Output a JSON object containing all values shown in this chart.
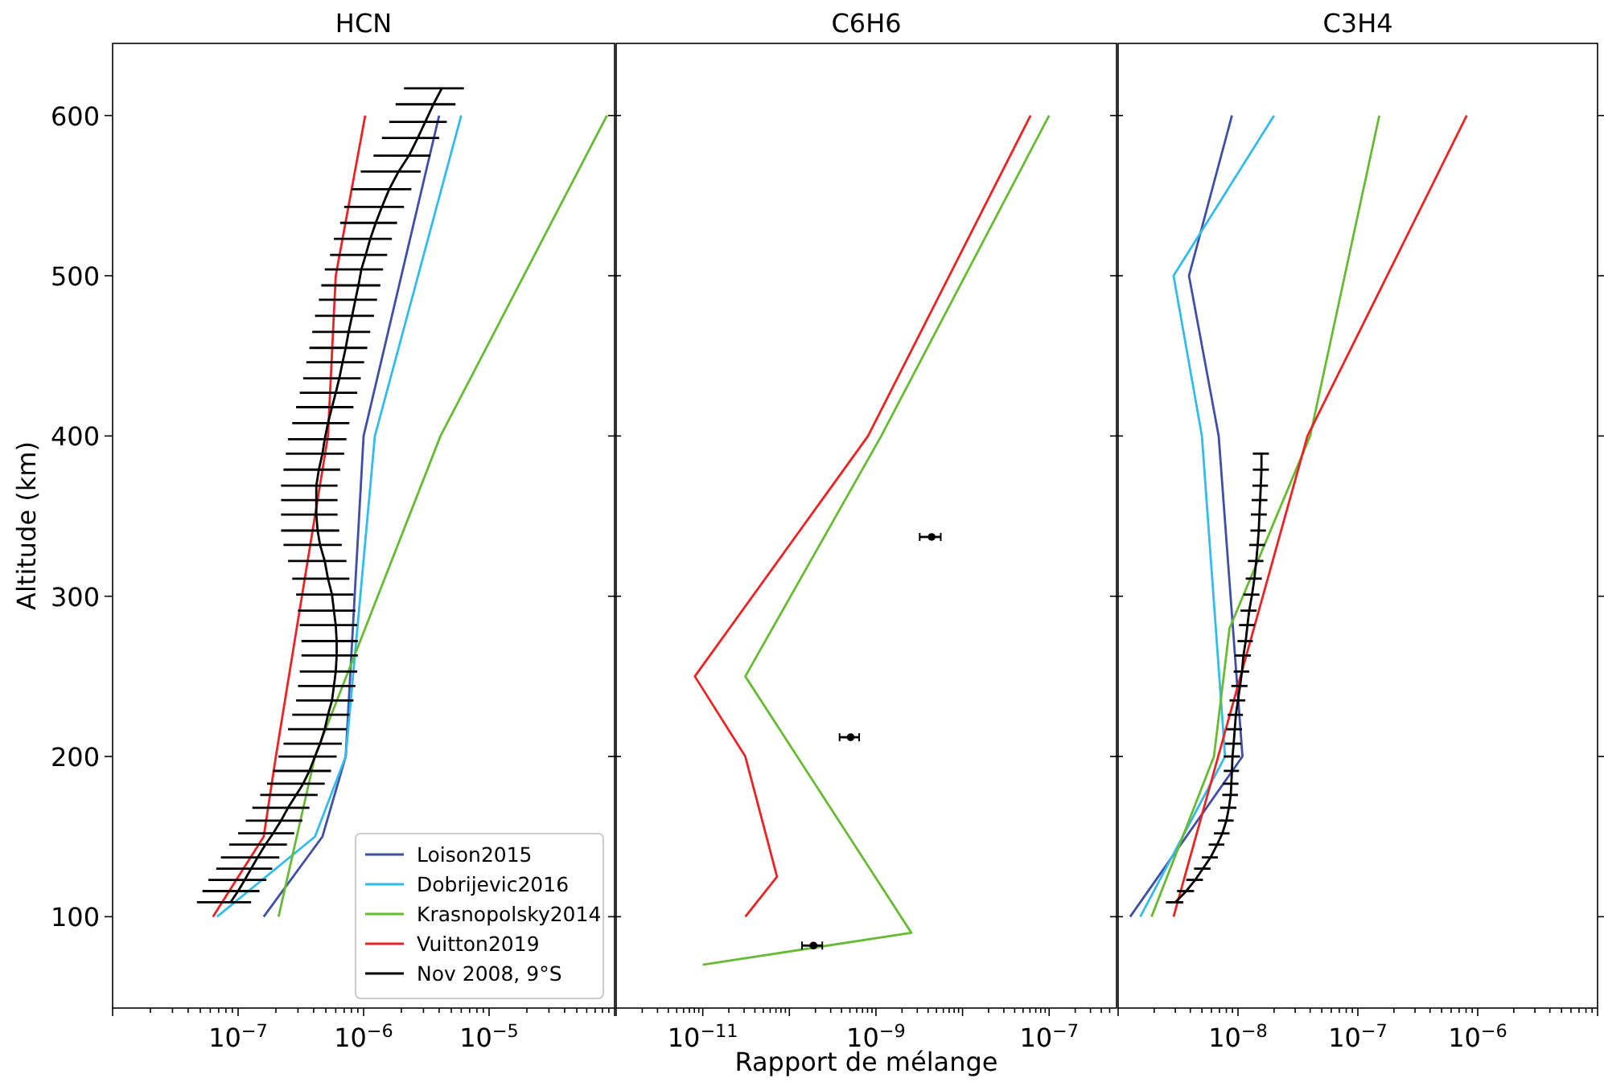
{
  "chart_data": [
    {
      "type": "line",
      "title": "HCN",
      "ylabel": "Altitude (km)",
      "log": "x",
      "legend": "bottom right",
      "xlim": [
        1e-08,
        0.0001
      ],
      "ylim": [
        43,
        645
      ],
      "yticks": [
        100,
        200,
        300,
        400,
        500,
        600
      ],
      "xticks": [
        {
          "value": 1e-08,
          "label": null
        },
        {
          "value": 2e-08,
          "label": null
        },
        {
          "value": 3e-08,
          "label": null
        },
        {
          "value": 4e-08,
          "label": null
        },
        {
          "value": 5e-08,
          "label": null
        },
        {
          "value": 6e-08,
          "label": null
        },
        {
          "value": 7e-08,
          "label": null
        },
        {
          "value": 8e-08,
          "label": null
        },
        {
          "value": 9e-08,
          "label": null
        },
        {
          "value": 1e-07,
          "label": "10$^{−7}$"
        },
        {
          "value": 2e-07,
          "label": null
        },
        {
          "value": 3e-07,
          "label": null
        },
        {
          "value": 4e-07,
          "label": null
        },
        {
          "value": 5e-07,
          "label": null
        },
        {
          "value": 6e-07,
          "label": null
        },
        {
          "value": 7e-07,
          "label": null
        },
        {
          "value": 8e-07,
          "label": null
        },
        {
          "value": 9e-07,
          "label": null
        },
        {
          "value": 1e-06,
          "label": "10$^{−6}$"
        },
        {
          "value": 2e-06,
          "label": null
        },
        {
          "value": 3e-06,
          "label": null
        },
        {
          "value": 4e-06,
          "label": null
        },
        {
          "value": 5e-06,
          "label": null
        },
        {
          "value": 6e-06,
          "label": null
        },
        {
          "value": 7e-06,
          "label": null
        },
        {
          "value": 8e-06,
          "label": null
        },
        {
          "value": 9e-06,
          "label": null
        },
        {
          "value": 1e-05,
          "label": "10$^{−5}$"
        },
        {
          "value": 2e-05,
          "label": null
        },
        {
          "value": 3e-05,
          "label": null
        },
        {
          "value": 4e-05,
          "label": null
        },
        {
          "value": 5e-05,
          "label": null
        },
        {
          "value": 6e-05,
          "label": null
        },
        {
          "value": 7e-05,
          "label": null
        },
        {
          "value": 8e-05,
          "label": null
        },
        {
          "value": 9e-05,
          "label": null
        },
        {
          "value": 0.0001,
          "label": null
        }
      ],
      "series": [
        {
          "name": "Loison2015",
          "color": "#3f4fa8",
          "x": [
            4e-06,
            1e-06,
            7.2e-07,
            4.7e-07,
            1.6e-07
          ],
          "values": [
            600,
            400,
            200,
            150,
            100
          ]
        },
        {
          "name": "Dobrijevic2016",
          "color": "#33bbee",
          "x": [
            6e-06,
            1.23e-06,
            7.2e-07,
            4.1e-07,
            6.8e-08
          ],
          "values": [
            600,
            400,
            200,
            150,
            100
          ]
        },
        {
          "name": "Krasnopolsky2014",
          "color": "#66bb33",
          "x": [
            8.7e-05,
            4.1e-06,
            4.1e-07,
            2.1e-07
          ],
          "values": [
            600,
            400,
            200,
            100
          ]
        },
        {
          "name": "Vuitton2019",
          "color": "#ee2222",
          "x": [
            1.03e-06,
            6e-07,
            5.2e-07,
            2e-07,
            1.6e-07,
            6.3e-08
          ],
          "values": [
            600,
            500,
            400,
            200,
            150,
            100
          ]
        },
        {
          "name": "Nov 2008, 9°S",
          "color": "#000000",
          "x": [
            4.2e-06,
            3.6e-06,
            3.1e-06,
            2.7e-06,
            2.3e-06,
            1.9e-06,
            1.6e-06,
            1.4e-06,
            1.25e-06,
            1.13e-06,
            1.04e-06,
            9.6e-07,
            9.1e-07,
            8.6e-07,
            8.1e-07,
            7.6e-07,
            7.2e-07,
            6.8e-07,
            6.4e-07,
            6e-07,
            5.6e-07,
            5.2e-07,
            4.9e-07,
            4.7e-07,
            4.4e-07,
            4.2e-07,
            4.2e-07,
            4.2e-07,
            4.3e-07,
            4.5e-07,
            4.9e-07,
            5.2e-07,
            5.6e-07,
            5.8e-07,
            6e-07,
            6.1e-07,
            6.1e-07,
            6e-07,
            5.8e-07,
            5.6e-07,
            5.2e-07,
            4.9e-07,
            4.5e-07,
            4.1e-07,
            3.7e-07,
            3.3e-07,
            2.9e-07,
            2.5e-07,
            2.2e-07,
            1.9e-07,
            1.65e-07,
            1.43e-07,
            1.27e-07,
            1.13e-07,
            1e-07,
            8.7e-08
          ],
          "values": [
            617,
            607,
            596,
            586,
            575,
            565,
            554,
            543,
            533,
            523,
            513,
            504,
            494,
            485,
            475,
            465,
            455,
            446,
            436,
            427,
            418,
            408,
            398,
            389,
            379,
            369,
            360,
            351,
            341,
            332,
            322,
            311,
            301,
            291,
            282,
            272,
            263,
            253,
            244,
            235,
            226,
            217,
            208,
            200,
            191,
            183,
            176,
            168,
            160,
            152,
            145,
            137,
            130,
            123,
            116,
            109
          ],
          "xerrors": [
            2.1e-06,
            1.8e-06,
            1.5e-06,
            1.3e-06,
            1.1e-06,
            9.5e-07,
            8e-07,
            7e-07,
            6e-07,
            5.5e-07,
            5e-07,
            4.7e-07,
            4.5e-07,
            4.2e-07,
            4e-07,
            3.7e-07,
            3.5e-07,
            3.3e-07,
            3.1e-07,
            2.9e-07,
            2.7e-07,
            2.5e-07,
            2.4e-07,
            2.3e-07,
            2.1e-07,
            2e-07,
            2e-07,
            2e-07,
            2.1e-07,
            2.2e-07,
            2.4e-07,
            2.5e-07,
            2.7e-07,
            2.8e-07,
            2.9e-07,
            2.9e-07,
            2.9e-07,
            2.9e-07,
            2.8e-07,
            2.7e-07,
            2.5e-07,
            2.4e-07,
            2.2e-07,
            2e-07,
            1.8e-07,
            1.6e-07,
            1.4e-07,
            1.2e-07,
            1.05e-07,
            9e-08,
            8e-08,
            7e-08,
            6e-08,
            5.5e-08,
            4.8e-08,
            4e-08
          ]
        }
      ]
    },
    {
      "type": "line",
      "title": "C6H6",
      "xlabel": "Rapport de mélange",
      "log": "x",
      "tick_labels": "x",
      "xlim": [
        1e-12,
        6e-07
      ],
      "ylim": [
        43,
        645
      ],
      "yticks": [
        100,
        200,
        300,
        400,
        500,
        600
      ],
      "xticks": [
        {
          "value": 1e-12,
          "label": null
        },
        {
          "value": 2e-12,
          "label": null
        },
        {
          "value": 3e-12,
          "label": null
        },
        {
          "value": 4e-12,
          "label": null
        },
        {
          "value": 5e-12,
          "label": null
        },
        {
          "value": 6e-12,
          "label": null
        },
        {
          "value": 7e-12,
          "label": null
        },
        {
          "value": 8e-12,
          "label": null
        },
        {
          "value": 9e-12,
          "label": null
        },
        {
          "value": 1e-11,
          "label": "10$^{−11}$"
        },
        {
          "value": 2e-11,
          "label": null
        },
        {
          "value": 3e-11,
          "label": null
        },
        {
          "value": 4e-11,
          "label": null
        },
        {
          "value": 5e-11,
          "label": null
        },
        {
          "value": 6e-11,
          "label": null
        },
        {
          "value": 7e-11,
          "label": null
        },
        {
          "value": 8e-11,
          "label": null
        },
        {
          "value": 9e-11,
          "label": null
        },
        {
          "value": 1e-10,
          "label": null
        },
        {
          "value": 2e-10,
          "label": null
        },
        {
          "value": 3e-10,
          "label": null
        },
        {
          "value": 4e-10,
          "label": null
        },
        {
          "value": 5e-10,
          "label": null
        },
        {
          "value": 6e-10,
          "label": null
        },
        {
          "value": 7e-10,
          "label": null
        },
        {
          "value": 8e-10,
          "label": null
        },
        {
          "value": 9e-10,
          "label": null
        },
        {
          "value": 1e-09,
          "label": "10$^{−9}$"
        },
        {
          "value": 2e-09,
          "label": null
        },
        {
          "value": 3e-09,
          "label": null
        },
        {
          "value": 4e-09,
          "label": null
        },
        {
          "value": 5e-09,
          "label": null
        },
        {
          "value": 6e-09,
          "label": null
        },
        {
          "value": 7e-09,
          "label": null
        },
        {
          "value": 8e-09,
          "label": null
        },
        {
          "value": 9e-09,
          "label": null
        },
        {
          "value": 1e-08,
          "label": null
        },
        {
          "value": 2e-08,
          "label": null
        },
        {
          "value": 3e-08,
          "label": null
        },
        {
          "value": 4e-08,
          "label": null
        },
        {
          "value": 5e-08,
          "label": null
        },
        {
          "value": 6e-08,
          "label": null
        },
        {
          "value": 7e-08,
          "label": null
        },
        {
          "value": 8e-08,
          "label": null
        },
        {
          "value": 9e-08,
          "label": null
        },
        {
          "value": 1e-07,
          "label": "10$^{−7}$"
        },
        {
          "value": 2e-07,
          "label": null
        },
        {
          "value": 3e-07,
          "label": null
        },
        {
          "value": 4e-07,
          "label": null
        },
        {
          "value": 5e-07,
          "label": null
        }
      ],
      "series": [
        {
          "color": "#66bb33",
          "x": [
            1e-07,
            1.15e-09,
            3.1e-11,
            2.56e-09,
            1e-11
          ],
          "values": [
            600,
            400,
            250,
            90,
            70
          ]
        },
        {
          "color": "#ee2222",
          "x": [
            6.1e-08,
            8.1e-10,
            8.1e-12,
            3.1e-11,
            7.2e-11,
            3.1e-11
          ],
          "values": [
            600,
            400,
            250,
            200,
            125,
            100
          ]
        },
        {
          "type": "scatter",
          "marker": "circle",
          "color": "#000000",
          "x": [
            4.4e-09,
            5.1e-10,
            1.9e-10
          ],
          "values": [
            337,
            212,
            82
          ],
          "xerrors": [
            1.2e-09,
            1.3e-10,
            5e-11
          ]
        }
      ]
    },
    {
      "type": "line",
      "title": "C3H4",
      "log": "x",
      "tick_labels": "x",
      "xlim": [
        1e-09,
        1e-05
      ],
      "ylim": [
        43,
        645
      ],
      "yticks": [
        100,
        200,
        300,
        400,
        500,
        600
      ],
      "xticks": [
        {
          "value": 1e-09,
          "label": null
        },
        {
          "value": 2e-09,
          "label": null
        },
        {
          "value": 3e-09,
          "label": null
        },
        {
          "value": 4e-09,
          "label": null
        },
        {
          "value": 5e-09,
          "label": null
        },
        {
          "value": 6e-09,
          "label": null
        },
        {
          "value": 7e-09,
          "label": null
        },
        {
          "value": 8e-09,
          "label": null
        },
        {
          "value": 9e-09,
          "label": null
        },
        {
          "value": 1e-08,
          "label": "10$^{−8}$"
        },
        {
          "value": 2e-08,
          "label": null
        },
        {
          "value": 3e-08,
          "label": null
        },
        {
          "value": 4e-08,
          "label": null
        },
        {
          "value": 5e-08,
          "label": null
        },
        {
          "value": 6e-08,
          "label": null
        },
        {
          "value": 7e-08,
          "label": null
        },
        {
          "value": 8e-08,
          "label": null
        },
        {
          "value": 9e-08,
          "label": null
        },
        {
          "value": 1e-07,
          "label": "10$^{−7}$"
        },
        {
          "value": 2e-07,
          "label": null
        },
        {
          "value": 3e-07,
          "label": null
        },
        {
          "value": 4e-07,
          "label": null
        },
        {
          "value": 5e-07,
          "label": null
        },
        {
          "value": 6e-07,
          "label": null
        },
        {
          "value": 7e-07,
          "label": null
        },
        {
          "value": 8e-07,
          "label": null
        },
        {
          "value": 9e-07,
          "label": null
        },
        {
          "value": 1e-06,
          "label": "10$^{−6}$"
        },
        {
          "value": 2e-06,
          "label": null
        },
        {
          "value": 3e-06,
          "label": null
        },
        {
          "value": 4e-06,
          "label": null
        },
        {
          "value": 5e-06,
          "label": null
        },
        {
          "value": 6e-06,
          "label": null
        },
        {
          "value": 7e-06,
          "label": null
        },
        {
          "value": 8e-06,
          "label": null
        },
        {
          "value": 9e-06,
          "label": null
        },
        {
          "value": 1e-05,
          "label": null
        }
      ],
      "series": [
        {
          "color": "#3f4fa8",
          "x": [
            8.9e-09,
            3.9e-09,
            6.9e-09,
            1.09e-08,
            1.26e-09
          ],
          "values": [
            600,
            500,
            400,
            200,
            100
          ]
        },
        {
          "color": "#33bbee",
          "x": [
            2e-08,
            2.9e-09,
            5e-09,
            7.8e-09,
            1.53e-09
          ],
          "values": [
            600,
            500,
            400,
            200,
            100
          ]
        },
        {
          "color": "#66bb33",
          "x": [
            1.51e-07,
            4e-08,
            8.5e-09,
            6.3e-09,
            1.9e-09
          ],
          "values": [
            600,
            400,
            280,
            200,
            100
          ]
        },
        {
          "color": "#ee2222",
          "x": [
            8.1e-07,
            3.8e-08,
            2.9e-09
          ],
          "values": [
            600,
            400,
            100
          ]
        },
        {
          "color": "#000000",
          "x": [
            1.57e-08,
            1.57e-08,
            1.55e-08,
            1.53e-08,
            1.51e-08,
            1.49e-08,
            1.46e-08,
            1.42e-08,
            1.37e-08,
            1.31e-08,
            1.24e-08,
            1.2e-08,
            1.16e-08,
            1.11e-08,
            1.08e-08,
            1.04e-08,
            1e-08,
            9.6e-09,
            9.4e-09,
            9.2e-09,
            9e-09,
            8.9e-09,
            8.8e-09,
            8.7e-09,
            8.4e-09,
            8e-09,
            7.4e-09,
            6.7e-09,
            5.9e-09,
            5.1e-09,
            4.4e-09,
            3.7e-09,
            3e-09
          ],
          "values": [
            389,
            379,
            369,
            360,
            351,
            341,
            332,
            322,
            311,
            301,
            291,
            282,
            272,
            263,
            253,
            244,
            235,
            226,
            217,
            208,
            200,
            191,
            183,
            176,
            168,
            160,
            152,
            145,
            137,
            130,
            123,
            116,
            109
          ],
          "xerrors": [
            2.4e-09,
            2.4e-09,
            2.3e-09,
            2.3e-09,
            2.3e-09,
            2.2e-09,
            2.2e-09,
            2.1e-09,
            2.1e-09,
            2e-09,
            1.9e-09,
            1.8e-09,
            1.7e-09,
            1.7e-09,
            1.6e-09,
            1.6e-09,
            1.5e-09,
            1.4e-09,
            1.4e-09,
            1.4e-09,
            1.4e-09,
            1.3e-09,
            1.3e-09,
            1.3e-09,
            1.3e-09,
            1.2e-09,
            1.1e-09,
            1e-09,
            9e-10,
            8e-10,
            7e-10,
            6e-10,
            5e-10
          ]
        }
      ]
    }
  ]
}
